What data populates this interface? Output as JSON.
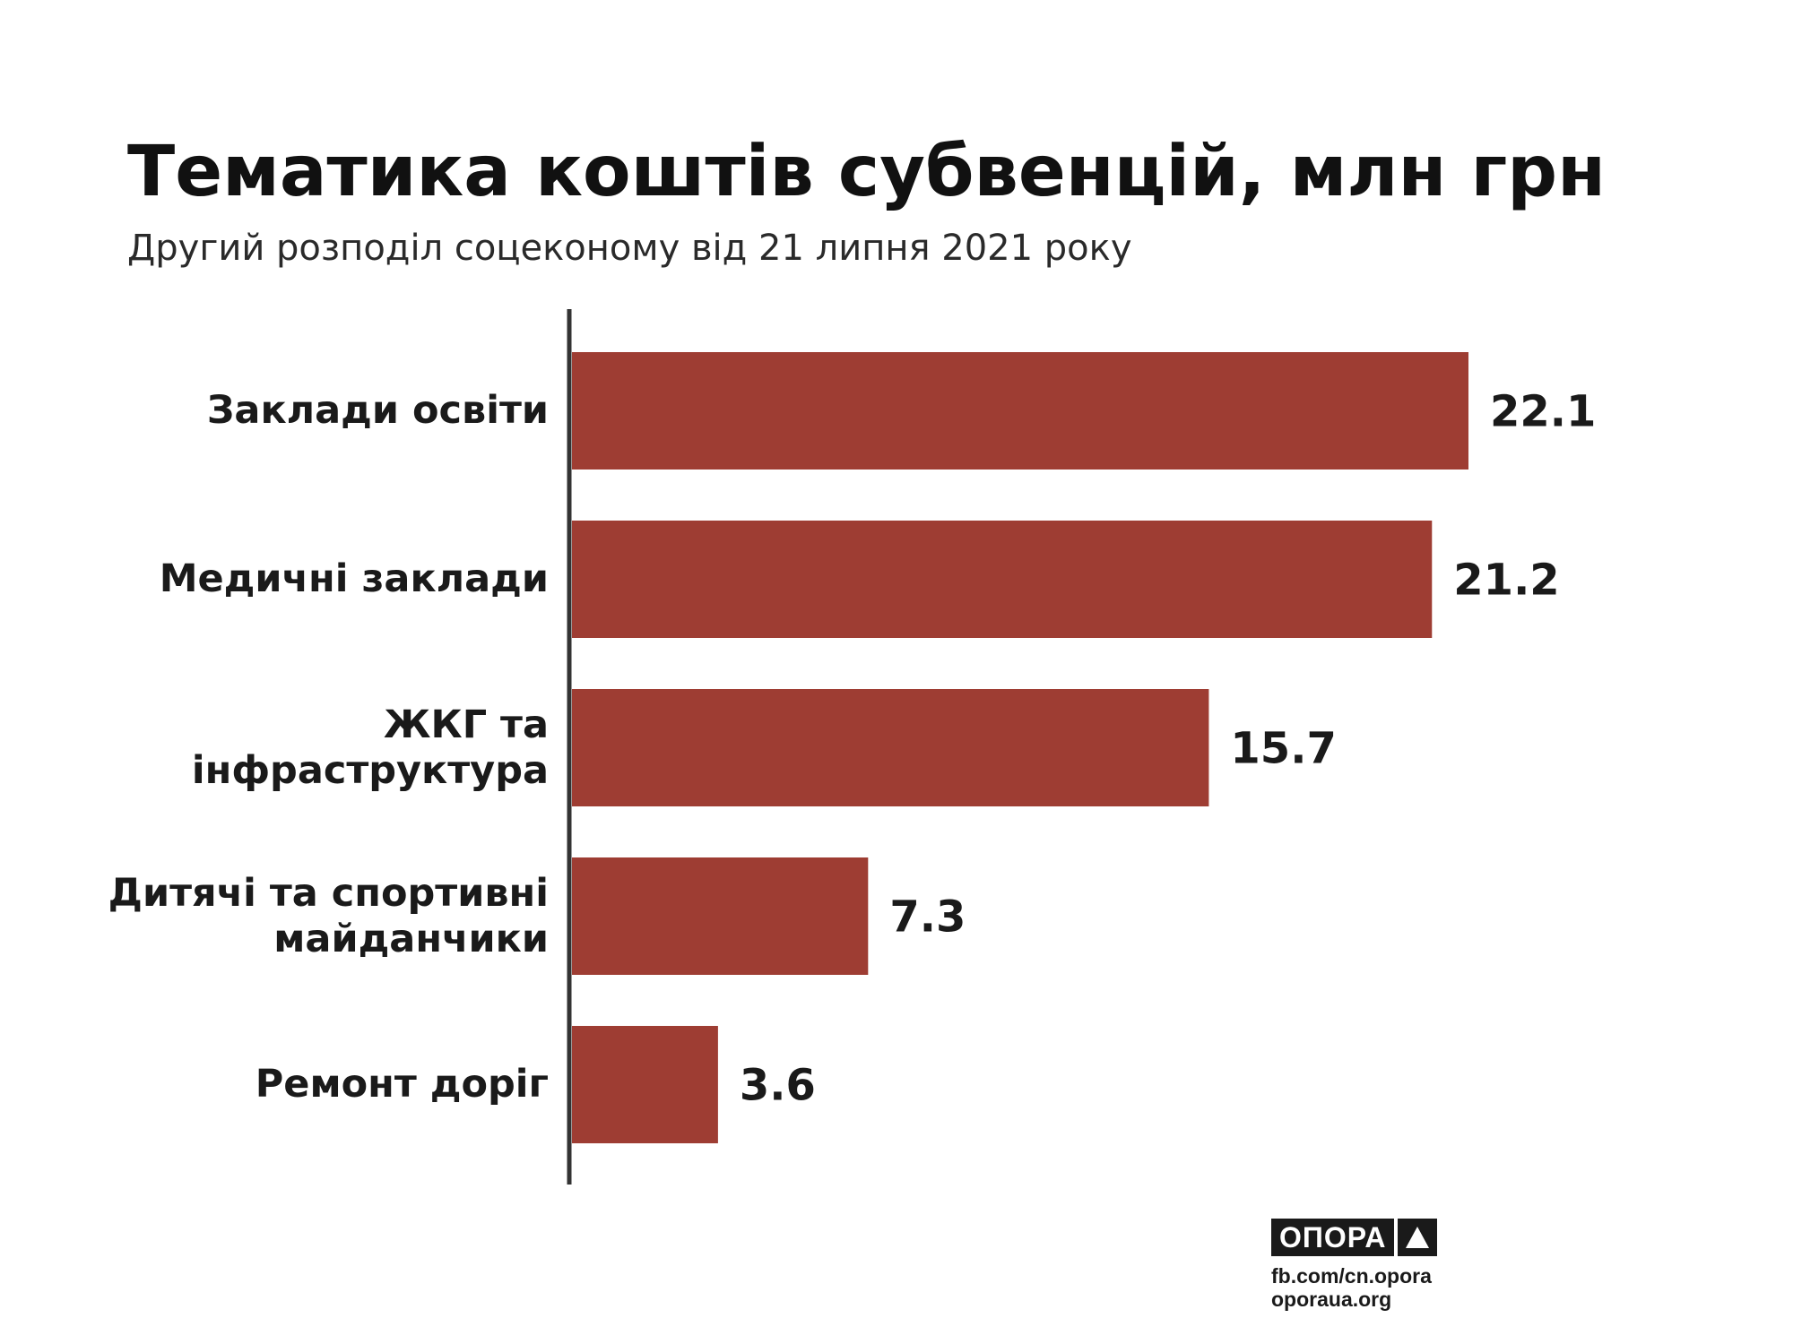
{
  "header": {
    "title": "Тематика коштів субвенцій, млн грн",
    "subtitle": "Другий розподіл соцеконому від 21 липня 2021 року"
  },
  "colors": {
    "bar": "#9e3d33",
    "axis": "#333333",
    "value_text": "#1a1a1a"
  },
  "chart_data": {
    "type": "bar",
    "orientation": "horizontal",
    "title": "Тематика коштів субвенцій, млн грн",
    "subtitle": "Другий розподіл соцеконому від 21 липня 2021 року",
    "categories": [
      "Заклади освіти",
      "Медичні заклади",
      "ЖКГ та інфраструктура",
      "Дитячі та спортивні майданчики",
      "Ремонт доріг"
    ],
    "category_lines": [
      [
        "Заклади освіти"
      ],
      [
        "Медичні заклади"
      ],
      [
        "ЖКГ та",
        "інфраструктура"
      ],
      [
        "Дитячі та спортивні",
        "майданчики"
      ],
      [
        "Ремонт доріг"
      ]
    ],
    "values": [
      22.1,
      21.2,
      15.7,
      7.3,
      3.6
    ],
    "value_labels": [
      "22.1",
      "21.2",
      "15.7",
      "7.3",
      "3.6"
    ],
    "xlabel": "",
    "ylabel": "",
    "xlim": [
      0,
      22.1
    ],
    "grid": false,
    "legend": "none"
  },
  "footer": {
    "logo_text": "ОПОРА",
    "logo_icon": "triangle-icon",
    "line1": "fb.com/cn.opora",
    "line2": "oporaua.org"
  }
}
